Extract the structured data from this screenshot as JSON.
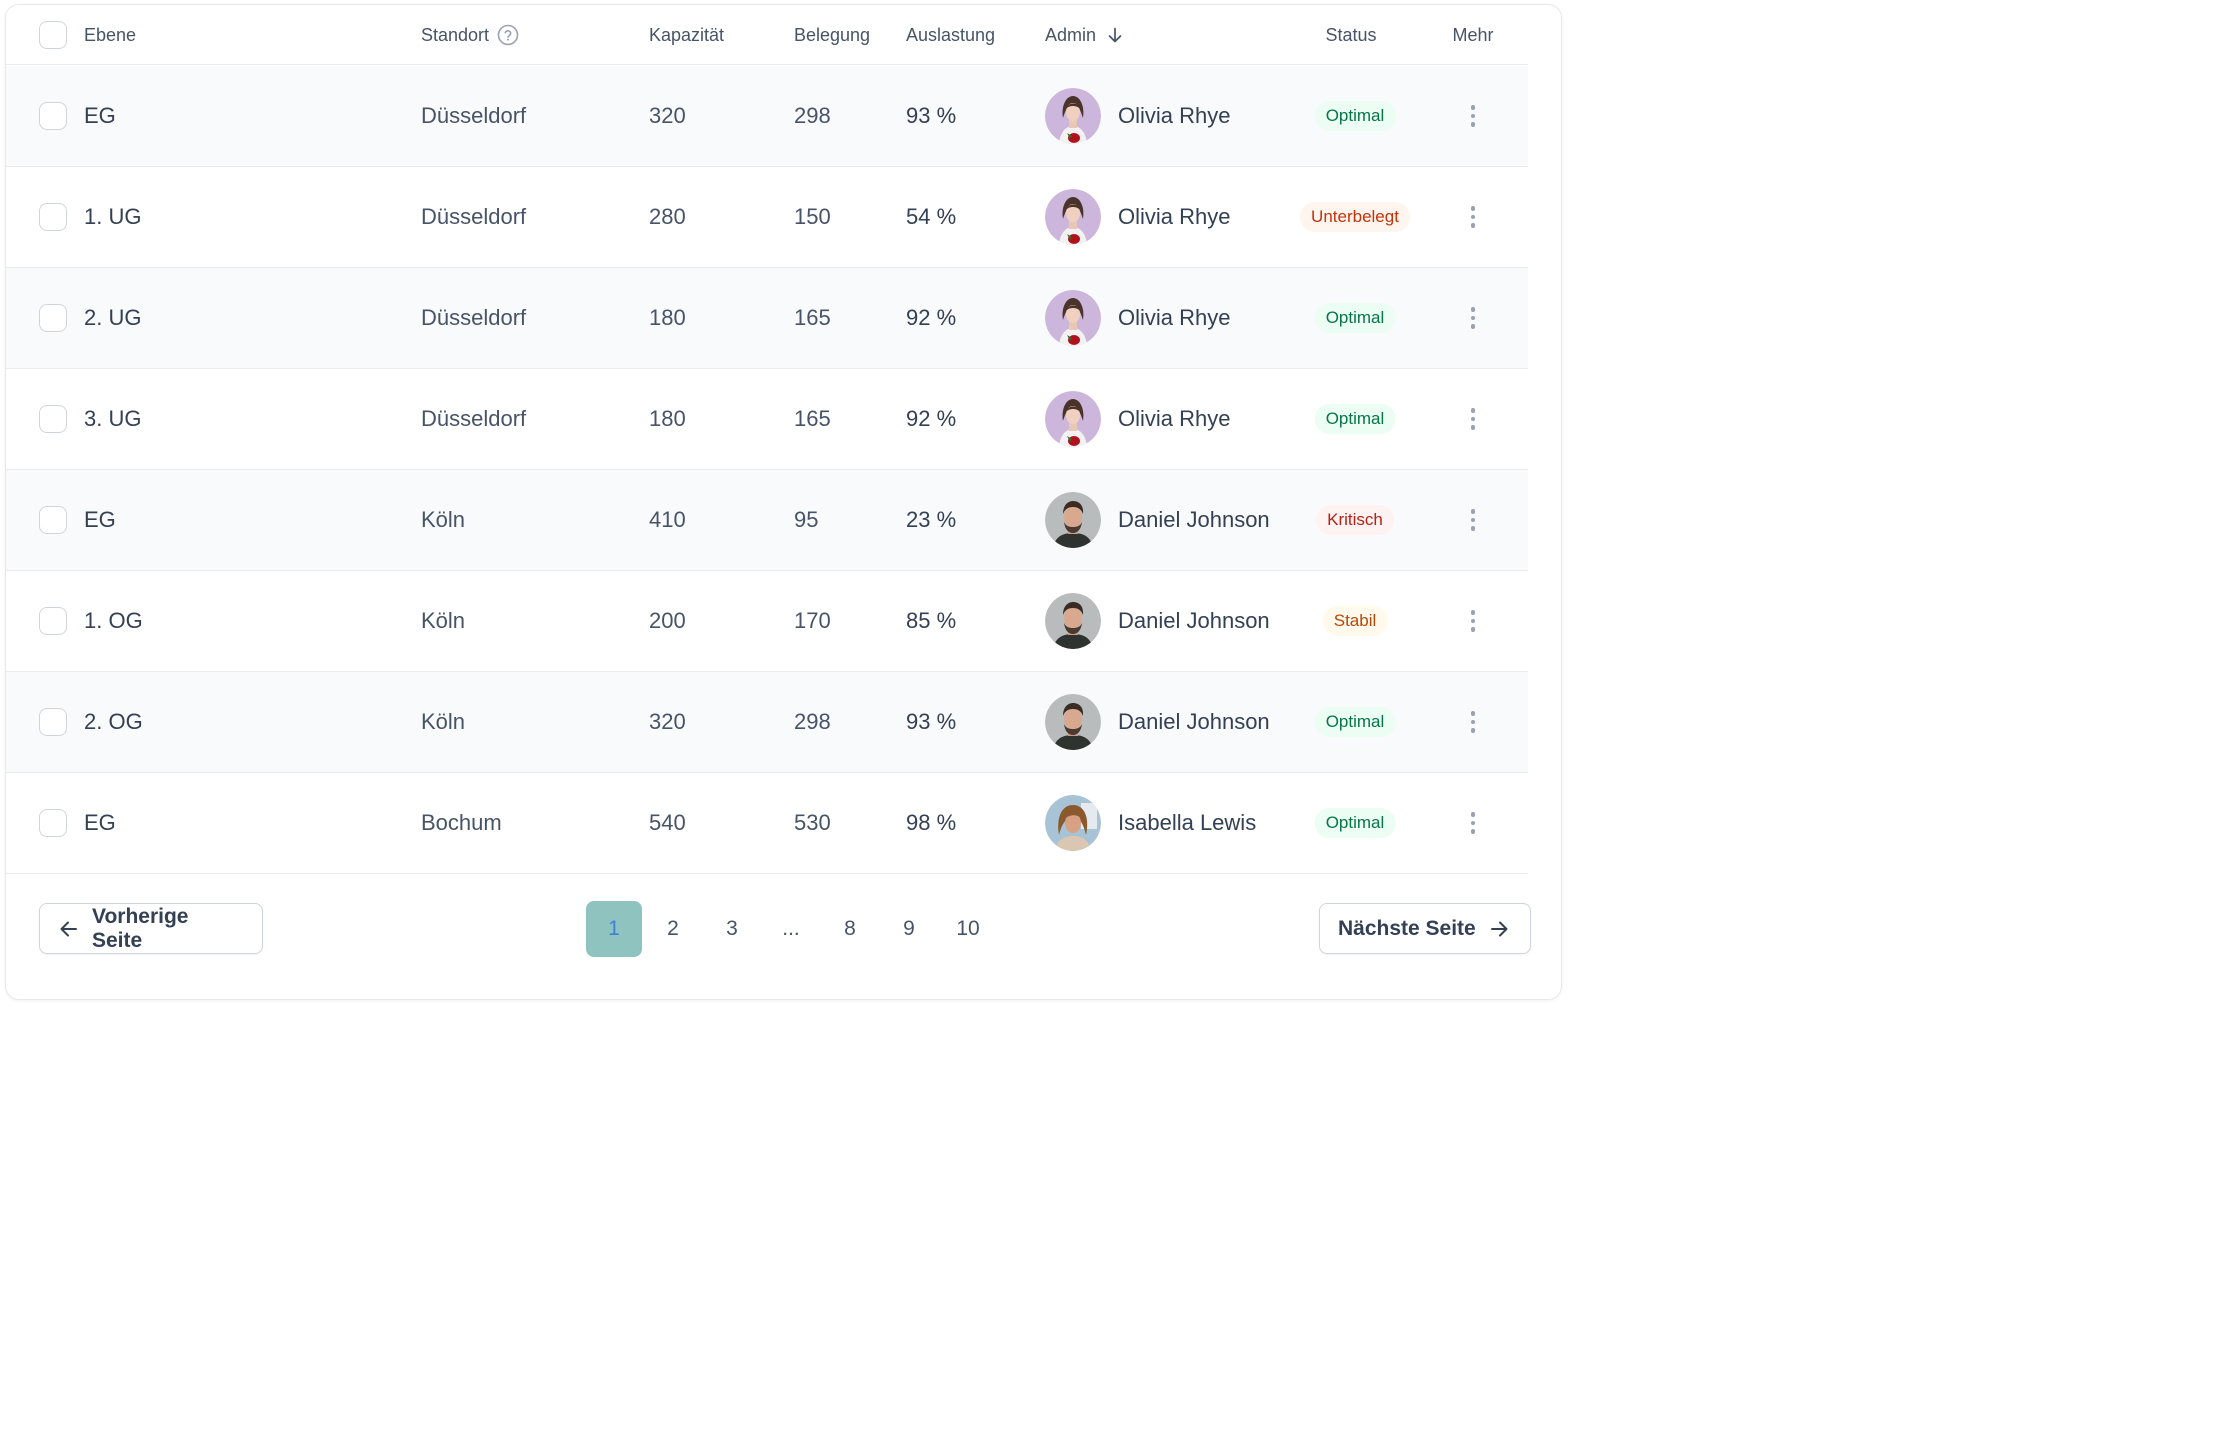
{
  "table": {
    "columns": {
      "ebene": "Ebene",
      "standort": "Standort",
      "kapazitaet": "Kapazität",
      "belegung": "Belegung",
      "auslastung": "Auslastung",
      "admin": "Admin",
      "status": "Status",
      "mehr": "Mehr"
    },
    "rows": [
      {
        "ebene": "EG",
        "standort": "Düsseldorf",
        "kapazitaet": "320",
        "belegung": "298",
        "auslastung": "93 %",
        "admin": "Olivia Rhye",
        "status": "Optimal",
        "status_kind": "optimal"
      },
      {
        "ebene": "1. UG",
        "standort": "Düsseldorf",
        "kapazitaet": "280",
        "belegung": "150",
        "auslastung": "54 %",
        "admin": "Olivia Rhye",
        "status": "Unterbelegt",
        "status_kind": "unter"
      },
      {
        "ebene": "2. UG",
        "standort": "Düsseldorf",
        "kapazitaet": "180",
        "belegung": "165",
        "auslastung": "92 %",
        "admin": "Olivia Rhye",
        "status": "Optimal",
        "status_kind": "optimal"
      },
      {
        "ebene": "3. UG",
        "standort": "Düsseldorf",
        "kapazitaet": "180",
        "belegung": "165",
        "auslastung": "92 %",
        "admin": "Olivia Rhye",
        "status": "Optimal",
        "status_kind": "optimal"
      },
      {
        "ebene": "EG",
        "standort": "Köln",
        "kapazitaet": "410",
        "belegung": "95",
        "auslastung": "23 %",
        "admin": "Daniel Johnson",
        "status": "Kritisch",
        "status_kind": "kritisch"
      },
      {
        "ebene": "1. OG",
        "standort": "Köln",
        "kapazitaet": "200",
        "belegung": "170",
        "auslastung": "85 %",
        "admin": "Daniel Johnson",
        "status": "Stabil",
        "status_kind": "stabil"
      },
      {
        "ebene": "2. OG",
        "standort": "Köln",
        "kapazitaet": "320",
        "belegung": "298",
        "auslastung": "93 %",
        "admin": "Daniel Johnson",
        "status": "Optimal",
        "status_kind": "optimal"
      },
      {
        "ebene": "EG",
        "standort": "Bochum",
        "kapazitaet": "540",
        "belegung": "530",
        "auslastung": "98 %",
        "admin": "Isabella Lewis",
        "status": "Optimal",
        "status_kind": "optimal"
      }
    ]
  },
  "pagination": {
    "prev_label": "Vorherige Seite",
    "next_label": "Nächste Seite",
    "pages": [
      "1",
      "2",
      "3",
      "...",
      "8",
      "9",
      "10"
    ],
    "current": "1"
  },
  "icons": {
    "help": "help-circle-icon",
    "sort": "arrow-down-icon",
    "more": "more-vertical-icon",
    "prev": "arrow-left-icon",
    "next": "arrow-right-icon"
  },
  "colors": {
    "active_page_bg": "#8fc3bf",
    "active_page_text": "#3f7fd8",
    "optimal": "#067647",
    "unterbelegt": "#c4320a",
    "kritisch": "#b42318",
    "stabil": "#b54708"
  }
}
